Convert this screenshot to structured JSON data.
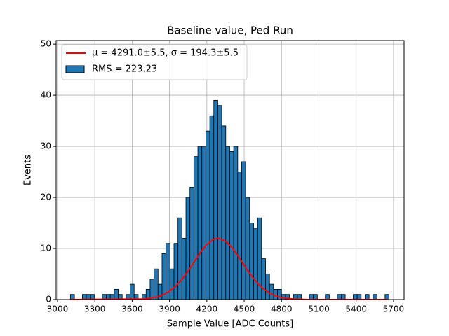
{
  "chart_data": {
    "type": "histogram",
    "title": "Baseline value, Ped Run",
    "xlabel": "Sample Value [ADC Counts]",
    "ylabel": "Events",
    "hist_label": "RMS = 223.23",
    "color": "#1f77b4",
    "edgecolor": "#000000",
    "bins": [
      3104,
      3136,
      3168,
      3200,
      3232,
      3264,
      3296,
      3328,
      3360,
      3392,
      3424,
      3456,
      3488,
      3520,
      3552,
      3584,
      3616,
      3648,
      3680,
      3712,
      3744,
      3776,
      3808,
      3840,
      3872,
      3904,
      3936,
      3968,
      4000,
      4032,
      4064,
      4096,
      4128,
      4160,
      4192,
      4224,
      4256,
      4288,
      4320,
      4352,
      4384,
      4416,
      4448,
      4480,
      4512,
      4544,
      4576,
      4608,
      4640,
      4672,
      4704,
      4736,
      4768,
      4800,
      4832,
      4864,
      4896,
      4928,
      4960,
      4992,
      5024,
      5056,
      5088,
      5120,
      5152,
      5184,
      5216,
      5248,
      5280,
      5312,
      5344,
      5376,
      5408,
      5440,
      5472,
      5504,
      5536,
      5568,
      5600,
      5632,
      5664
    ],
    "counts": [
      1,
      0,
      0,
      1,
      1,
      1,
      0,
      0,
      1,
      1,
      1,
      2,
      1,
      0,
      1,
      3,
      1,
      0,
      1,
      2,
      4,
      6,
      3,
      9,
      11,
      6,
      11,
      16,
      12,
      20,
      22,
      28,
      30,
      30,
      33,
      36,
      39,
      38,
      34,
      30,
      29,
      30,
      25,
      27,
      20,
      15,
      14,
      16,
      8,
      5,
      3,
      2,
      2,
      1,
      1,
      0,
      1,
      1,
      0,
      0,
      1,
      1,
      0,
      0,
      1,
      0,
      0,
      1,
      1,
      0,
      0,
      1,
      1,
      0,
      1,
      0,
      1,
      0,
      0,
      1
    ],
    "lines": [
      {
        "name": "μ = 4291.0±5.5, σ = 194.3±5.5",
        "color": "#ff0000",
        "x": [
          3100,
          3700,
          3800,
          3850,
          3900,
          3950,
          4000,
          4050,
          4100,
          4150,
          4200,
          4250,
          4291,
          4350,
          4400,
          4450,
          4500,
          4550,
          4600,
          4650,
          4700,
          4750,
          4800,
          4900,
          5000,
          5650
        ],
        "values": [
          0,
          0.12,
          0.49,
          0.91,
          1.59,
          2.57,
          3.91,
          5.56,
          7.4,
          9.22,
          10.75,
          11.73,
          12,
          11.46,
          10.25,
          8.58,
          6.73,
          4.94,
          3.39,
          2.18,
          1.31,
          0.74,
          0.39,
          0.09,
          0.02,
          0
        ]
      }
    ],
    "xlim": [
      2989,
      5785
    ],
    "ylim": [
      0,
      50.7
    ],
    "xticks": [
      3000,
      3300,
      3600,
      3900,
      4200,
      4500,
      4800,
      5100,
      5400,
      5700
    ],
    "yticks": [
      0,
      10,
      20,
      30,
      40,
      50
    ],
    "grid": true,
    "legend": "upper left"
  }
}
